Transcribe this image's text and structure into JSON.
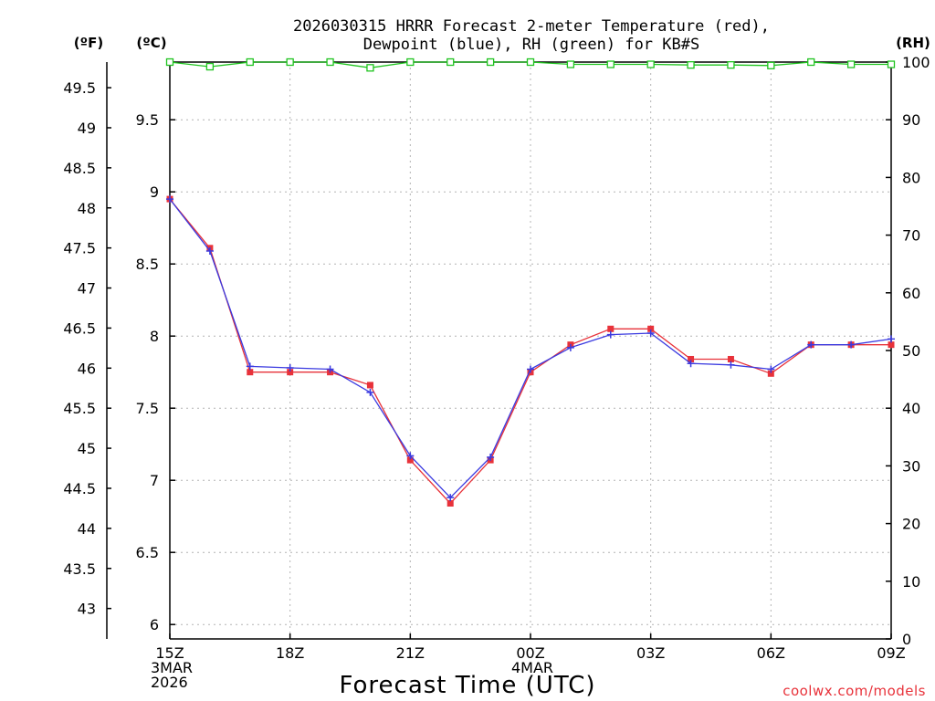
{
  "title": {
    "line1": "2026030315 HRRR Forecast 2-meter Temperature (red),",
    "line2": "Dewpoint (blue), RH (green) for KB#S"
  },
  "axes": {
    "f_unit_label": "(ºF)",
    "c_unit_label": "(ºC)",
    "rh_unit_label": "(RH)",
    "x_label": "Forecast Time (UTC)",
    "x_ticks": [
      {
        "hour": 0,
        "lines": [
          "15Z",
          "3MAR",
          "2026"
        ]
      },
      {
        "hour": 3,
        "lines": [
          "18Z"
        ]
      },
      {
        "hour": 6,
        "lines": [
          "21Z"
        ]
      },
      {
        "hour": 9,
        "lines": [
          "00Z",
          "4MAR"
        ]
      },
      {
        "hour": 12,
        "lines": [
          "03Z"
        ]
      },
      {
        "hour": 15,
        "lines": [
          "06Z"
        ]
      },
      {
        "hour": 18,
        "lines": [
          "09Z"
        ]
      }
    ],
    "c_ticks": [
      "6",
      "6.5",
      "7",
      "7.5",
      "8",
      "8.5",
      "9",
      "9.5"
    ],
    "f_ticks": [
      "43",
      "43.5",
      "44",
      "44.5",
      "45",
      "45.5",
      "46",
      "46.5",
      "47",
      "47.5",
      "48",
      "48.5",
      "49",
      "49.5"
    ],
    "rh_ticks": [
      "0",
      "10",
      "20",
      "30",
      "40",
      "50",
      "60",
      "70",
      "80",
      "90",
      "100"
    ]
  },
  "credit": "coolwx.com/models",
  "colors": {
    "temperature": "#e8323a",
    "dewpoint": "#3a3ae0",
    "rh": "#1fc41f",
    "grid": "#b4b4b4",
    "credit": "#e8323a"
  },
  "chart_data": {
    "type": "line",
    "title": "2026030315 HRRR Forecast 2-meter Temperature (red), Dewpoint (blue), RH (green) for KB#S",
    "xlabel": "Forecast Time (UTC)",
    "ylabel_left_inner": "ºC",
    "ylabel_left_outer": "ºF",
    "ylabel_right": "RH",
    "x_hours": [
      0,
      1,
      2,
      3,
      4,
      5,
      6,
      7,
      8,
      9,
      10,
      11,
      12,
      13,
      14,
      15,
      16,
      17,
      18
    ],
    "xlim": [
      0,
      18
    ],
    "c_lim": [
      5.9,
      9.9
    ],
    "f_lim": [
      42.62,
      49.82
    ],
    "rh_lim": [
      0,
      100
    ],
    "grid": true,
    "series": [
      {
        "name": "Temperature",
        "axis": "celsius",
        "marker": "square",
        "values": [
          8.95,
          8.61,
          7.75,
          7.75,
          7.75,
          7.66,
          7.14,
          6.84,
          7.14,
          7.75,
          7.94,
          8.05,
          8.05,
          7.84,
          7.84,
          7.74,
          7.94,
          7.94,
          7.94
        ]
      },
      {
        "name": "Dewpoint",
        "axis": "celsius",
        "marker": "plus",
        "values": [
          8.95,
          8.59,
          7.79,
          7.78,
          7.77,
          7.61,
          7.17,
          6.88,
          7.16,
          7.77,
          7.92,
          8.01,
          8.02,
          7.81,
          7.8,
          7.77,
          7.94,
          7.94,
          7.98
        ]
      },
      {
        "name": "RH",
        "axis": "rh",
        "marker": "open-square",
        "values": [
          100,
          99.2,
          100,
          100,
          100,
          99,
          100,
          100,
          100,
          100,
          99.6,
          99.6,
          99.6,
          99.5,
          99.5,
          99.4,
          100,
          99.6,
          99.6
        ]
      }
    ]
  }
}
